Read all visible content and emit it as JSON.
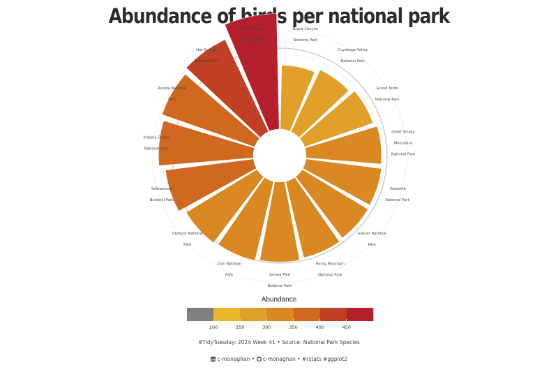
{
  "page": {
    "title": "Abundance of birds per national park",
    "caption": "#TidyTuesday: 2024 Week 41 • Source: National Park Species",
    "credit_user_1": "c-monaghan",
    "credit_sep_1": "•",
    "credit_user_2": "c-monaghan",
    "credit_tail": "• #rstats #ggplot2",
    "icons": [
      "linkedin-icon",
      "github-icon"
    ]
  },
  "chart_data": {
    "type": "bar",
    "coordinate_system": "polar",
    "title": "Abundance of birds per national park",
    "categories": [
      [
        "Bryce Canyon",
        "National Park"
      ],
      [
        "Cuyahoga Valley",
        "National Park"
      ],
      [
        "Grand Teton",
        "National Park"
      ],
      [
        "Great Smoky",
        "Mountains",
        "National Park"
      ],
      [
        "Yosemite",
        "National Park"
      ],
      [
        "Glacier National",
        "Park"
      ],
      [
        "Rocky Mountain",
        "National Park"
      ],
      [
        "Joshua Tree",
        "National Park"
      ],
      [
        "Zion National",
        "Park"
      ],
      [
        "Olympic National",
        "Park"
      ],
      [
        "Yellowstone",
        "National Park"
      ],
      [
        "Indiana Dunes",
        "National Park"
      ],
      [
        "Acadia National",
        "Park"
      ],
      [
        "Hot Springs",
        "National Park"
      ],
      [
        "Grand Canyon",
        "National Park"
      ]
    ],
    "values": [
      255,
      272,
      288,
      300,
      303,
      306,
      312,
      318,
      324,
      330,
      353,
      377,
      391,
      405,
      460
    ],
    "grid": true,
    "legend": {
      "title": "Abundance",
      "position": "bottom",
      "type": "binned",
      "breaks": [
        200,
        250,
        300,
        350,
        400,
        450
      ],
      "colors": [
        "#7f7f7f",
        "#e8b72a",
        "#e0a02a",
        "#d98822",
        "#d0691f",
        "#c13f24",
        "#b51f2e"
      ]
    }
  }
}
